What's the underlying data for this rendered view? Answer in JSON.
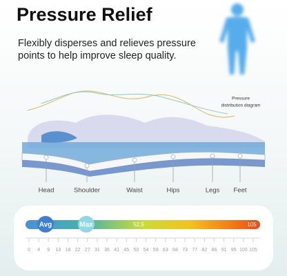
{
  "header": {
    "title": "Pressure Relief",
    "description": [
      "Flexibly disperses and relieves pressure",
      "points to help improve sleep quality."
    ]
  },
  "diagram": {
    "caption": [
      "Pressure",
      "distribution diagram"
    ],
    "labels": [
      "Head",
      "Shoulder",
      "Waist",
      "Hips",
      "Legs",
      "Feet"
    ]
  },
  "scale": {
    "avg": "Avg",
    "max": "Max",
    "mid": "52.5",
    "end": "105",
    "ticks": [
      0,
      4,
      9,
      13,
      18,
      22,
      27,
      31,
      36,
      41,
      45,
      50,
      54,
      59,
      63,
      68,
      73,
      77,
      82,
      86,
      91,
      95,
      100,
      105
    ]
  }
}
